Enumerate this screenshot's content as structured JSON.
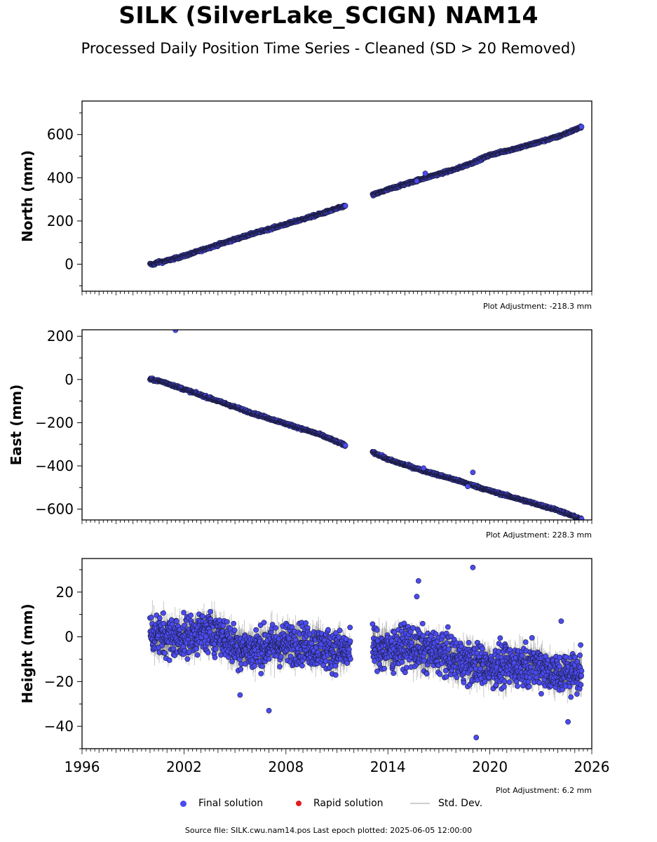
{
  "title": "SILK (SilverLake_SCIGN) NAM14",
  "subtitle": "Processed Daily Position Time Series - Cleaned (SD > 20 Removed)",
  "source_text": "Source file: SILK.cwu.nam14.pos  Last epoch plotted: 2025-06-05 12:00:00",
  "legend": {
    "final": "Final solution",
    "rapid": "Rapid solution",
    "std": "Std. Dev."
  },
  "colors": {
    "final": "#4b4bf0",
    "final_edge": "#1a1a3a",
    "rapid": "#e31a1c",
    "std": "#cfcfcf"
  },
  "chart_data": [
    {
      "type": "scatter",
      "ylabel": "North (mm)",
      "adjustment": "Plot Adjustment: -218.3 mm",
      "xlim": [
        1996,
        2026
      ],
      "ylim": [
        -125,
        755
      ],
      "yticks": [
        0,
        200,
        400,
        600
      ],
      "xtick_labels_shown": false,
      "series": [
        {
          "name": "Final solution",
          "segments": [
            {
              "x": [
                2000.0,
                2000.2,
                2000.4,
                2000.8,
                2002,
                2004,
                2006,
                2008,
                2010,
                2011.5
              ],
              "y": [
                0,
                -2,
                8,
                12,
                38,
                90,
                140,
                185,
                232,
                270
              ]
            },
            {
              "x": [
                2013.1,
                2014,
                2016,
                2018,
                2019,
                2020,
                2022,
                2024,
                2025.4
              ],
              "y": [
                320,
                345,
                395,
                440,
                470,
                505,
                545,
                590,
                635
              ]
            }
          ],
          "outliers": [
            {
              "x": 2016.2,
              "y": 420
            },
            {
              "x": 2015.7,
              "y": 385
            }
          ]
        }
      ]
    },
    {
      "type": "scatter",
      "ylabel": "East (mm)",
      "adjustment": "Plot Adjustment: 228.3 mm",
      "xlim": [
        1996,
        2026
      ],
      "ylim": [
        -650,
        230
      ],
      "yticks": [
        -600,
        -400,
        -200,
        0,
        200
      ],
      "xtick_labels_shown": false,
      "series": [
        {
          "name": "Final solution",
          "segments": [
            {
              "x": [
                2000.0,
                2000.2,
                2000.4,
                2000.8,
                2002,
                2004,
                2006,
                2008,
                2010,
                2011.5
              ],
              "y": [
                0,
                -2,
                -5,
                -12,
                -45,
                -100,
                -155,
                -205,
                -255,
                -305
              ]
            },
            {
              "x": [
                2013.1,
                2014,
                2016,
                2018,
                2019,
                2020,
                2022,
                2024,
                2025.4
              ],
              "y": [
                -335,
                -370,
                -420,
                -465,
                -490,
                -515,
                -560,
                -605,
                -648
              ]
            }
          ],
          "outliers": [
            {
              "x": 2001.5,
              "y": 228
            },
            {
              "x": 2019.0,
              "y": -430
            },
            {
              "x": 2016.1,
              "y": -410
            },
            {
              "x": 2018.7,
              "y": -495
            }
          ]
        }
      ]
    },
    {
      "type": "scatter",
      "ylabel": "Height (mm)",
      "adjustment": "Plot Adjustment: 6.2 mm",
      "xlim": [
        1996,
        2026
      ],
      "ylim": [
        -50,
        35
      ],
      "yticks": [
        -40,
        -20,
        0,
        20
      ],
      "xticks": [
        1996,
        2002,
        2008,
        2014,
        2020,
        2026
      ],
      "xtick_labels_shown": true,
      "series": [
        {
          "name": "Final solution",
          "segments": [
            {
              "x": [
                2000.0,
                2001,
                2002,
                2003,
                2004,
                2005,
                2006,
                2007,
                2008,
                2009,
                2010,
                2011,
                2011.8
              ],
              "y": [
                2,
                0,
                0,
                2,
                2,
                -4,
                -6,
                -4,
                -3,
                -3,
                -5,
                -6,
                -7
              ]
            },
            {
              "x": [
                2013.1,
                2014,
                2015,
                2016,
                2017,
                2018,
                2019,
                2020,
                2021,
                2022,
                2023,
                2024,
                2025.4
              ],
              "y": [
                -5,
                -6,
                -4,
                -6,
                -7,
                -10,
                -12,
                -13,
                -13,
                -12,
                -13,
                -17,
                -15
              ]
            }
          ],
          "spread": 9,
          "outliers": [
            {
              "x": 2019.0,
              "y": 31
            },
            {
              "x": 2015.8,
              "y": 25
            },
            {
              "x": 2015.7,
              "y": 18
            },
            {
              "x": 2007.0,
              "y": -33
            },
            {
              "x": 2019.2,
              "y": -45
            },
            {
              "x": 2024.2,
              "y": 7
            },
            {
              "x": 2024.6,
              "y": -38
            },
            {
              "x": 2005.3,
              "y": -26
            }
          ]
        }
      ]
    }
  ]
}
